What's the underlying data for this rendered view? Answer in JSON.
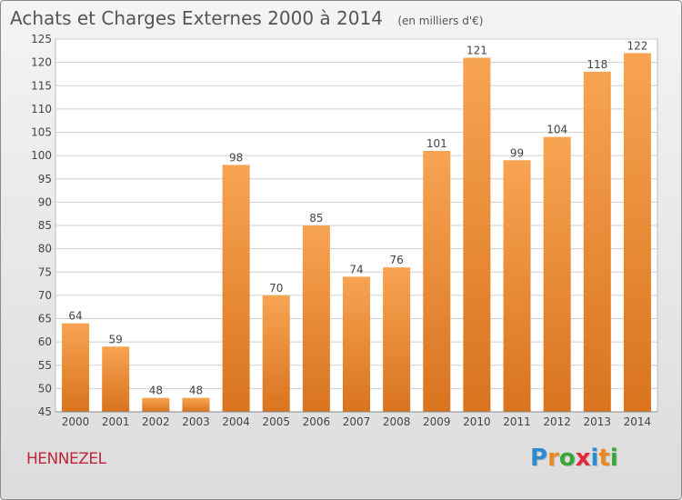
{
  "header": {
    "title": "Achats et Charges Externes 2000 à 2014",
    "subtitle": "(en milliers d'€)"
  },
  "place_name": "HENNEZEL",
  "logo": {
    "text": "Proxiti",
    "letters": [
      {
        "ch": "P",
        "color": "#2e8bd0"
      },
      {
        "ch": "r",
        "color": "#e8891e"
      },
      {
        "ch": "o",
        "color": "#3aa63a"
      },
      {
        "ch": "x",
        "color": "#e2283a"
      },
      {
        "ch": "i",
        "color": "#2e8bd0"
      },
      {
        "ch": "t",
        "color": "#e8891e"
      },
      {
        "ch": "i",
        "color": "#3aa63a"
      }
    ]
  },
  "colors": {
    "bar_light": "#f7a452",
    "bar_dark": "#d9731e",
    "grid": "#d0d0d0",
    "axis_text": "#444444",
    "plot_bg": "#ffffff"
  },
  "chart_data": {
    "type": "bar",
    "title": "Achats et Charges Externes 2000 à 2014",
    "categories": [
      "2000",
      "2001",
      "2002",
      "2003",
      "2004",
      "2005",
      "2006",
      "2007",
      "2008",
      "2009",
      "2010",
      "2011",
      "2012",
      "2013",
      "2014"
    ],
    "values": [
      64,
      59,
      48,
      48,
      98,
      70,
      85,
      74,
      76,
      101,
      121,
      99,
      104,
      118,
      122
    ],
    "ylim": [
      45,
      125
    ],
    "ytick_step": 5,
    "grid": true,
    "data_labels": true
  }
}
